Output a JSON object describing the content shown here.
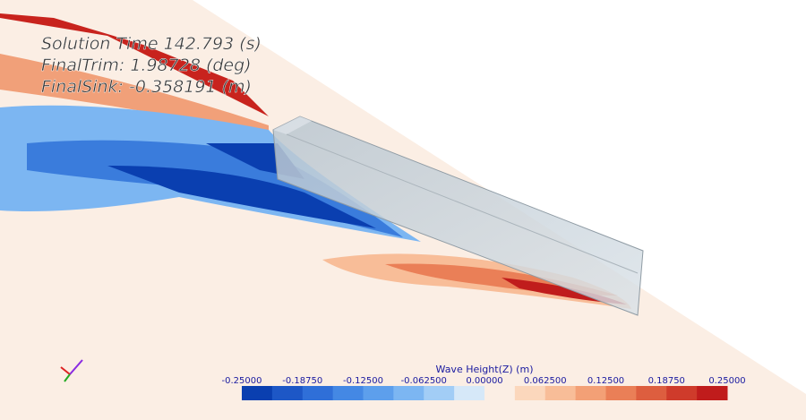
{
  "overlay": {
    "lines": [
      "Solution Time 142.793 (s)",
      "FinalTrim: 1.98728 (deg)",
      "FinalSink: -0.358191 (m)"
    ]
  },
  "legend": {
    "title": "Wave Height(Z) (m)",
    "ticks": [
      "-0.25000",
      "-0.18750",
      "-0.12500",
      "-0.062500",
      "0.00000",
      "0.062500",
      "0.12500",
      "0.18750",
      "0.25000"
    ],
    "colors": [
      "#0a3fb0",
      "#1d57c6",
      "#2f6fd8",
      "#4488e4",
      "#5d9fec",
      "#7cb6f2",
      "#a2cdf6",
      "#d6e8f8",
      "#fbeee4",
      "#fbd7bc",
      "#f8bd98",
      "#f3a076",
      "#ea7f57",
      "#dd5e3f",
      "#cf3b2b",
      "#c01c1c"
    ]
  }
}
